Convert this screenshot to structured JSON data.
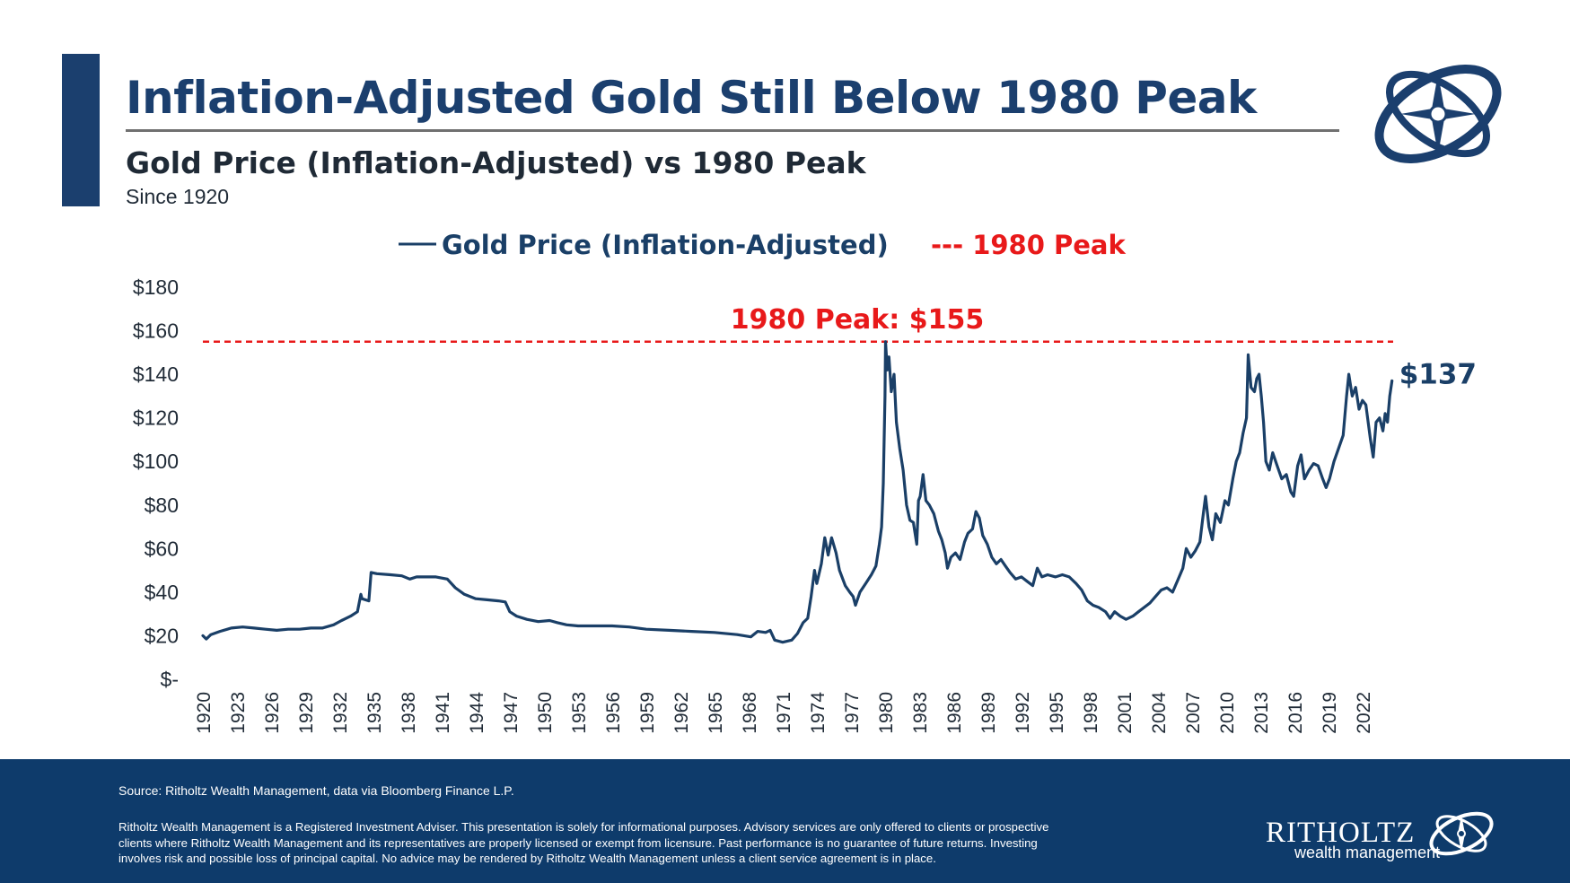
{
  "header": {
    "title": "Inflation-Adjusted Gold Still Below 1980 Peak",
    "subtitle": "Gold Price (Inflation-Adjusted) vs 1980 Peak",
    "since": "Since 1920"
  },
  "footer": {
    "source": "Source: Ritholtz Wealth Management, data via Bloomberg Finance L.P.",
    "disclaimer": "Ritholtz Wealth Management is a Registered Investment Adviser. This presentation is solely for informational purposes. Advisory services are only offered to clients or prospective clients where Ritholtz Wealth Management and its representatives are properly licensed or exempt from licensure. Past performance is no guarantee of future returns. Investing involves risk and possible loss of principal capital. No advice may be rendered by Ritholtz Wealth Management unless a client service agreement is in place.",
    "brand_name": "RITHOLTZ",
    "brand_sub": "wealth management"
  },
  "colors": {
    "navy": "#1b3f6e",
    "line": "#1a3f67",
    "peak_red": "#e8191a",
    "footer_bg": "#0e3b6b"
  },
  "chart_data": {
    "type": "line",
    "title": "Gold Price (Inflation-Adjusted) vs 1980 Peak",
    "ylim": [
      0,
      180
    ],
    "y_ticks": [
      0,
      20,
      40,
      60,
      80,
      100,
      120,
      140,
      160,
      180
    ],
    "y_tick_labels": [
      "$-",
      "$20",
      "$40",
      "$60",
      "$80",
      "$100",
      "$120",
      "$140",
      "$160",
      "$180"
    ],
    "x_tick_labels": [
      "1920",
      "1923",
      "1926",
      "1929",
      "1932",
      "1935",
      "1938",
      "1941",
      "1944",
      "1947",
      "1950",
      "1953",
      "1956",
      "1959",
      "1962",
      "1965",
      "1968",
      "1971",
      "1974",
      "1977",
      "1980",
      "1983",
      "1986",
      "1989",
      "1992",
      "1995",
      "1998",
      "2001",
      "2004",
      "2007",
      "2010",
      "2013",
      "2016",
      "2019",
      "2022"
    ],
    "xlim": [
      1920,
      2024.7
    ],
    "legend": {
      "position": "top",
      "line_label": "Gold Price (Inflation-Adjusted)",
      "peak_label": "--- 1980 Peak"
    },
    "reference_line": {
      "name": "1980 Peak",
      "value": 155,
      "label": "1980 Peak: $155",
      "style": "dashed"
    },
    "end_label": "$137",
    "series": [
      {
        "name": "Gold Price (Inflation-Adjusted)",
        "points": [
          [
            1920.0,
            20
          ],
          [
            1920.3,
            18.5
          ],
          [
            1920.7,
            20.5
          ],
          [
            1921.5,
            22
          ],
          [
            1922.5,
            23.5
          ],
          [
            1923.5,
            24
          ],
          [
            1924.5,
            23.5
          ],
          [
            1925.5,
            23
          ],
          [
            1926.5,
            22.5
          ],
          [
            1927.5,
            23
          ],
          [
            1928.5,
            23
          ],
          [
            1929.5,
            23.5
          ],
          [
            1930.5,
            23.5
          ],
          [
            1931.5,
            25
          ],
          [
            1932.2,
            27
          ],
          [
            1933.0,
            29
          ],
          [
            1933.6,
            31
          ],
          [
            1933.9,
            39
          ],
          [
            1934.0,
            37
          ],
          [
            1934.6,
            36
          ],
          [
            1934.8,
            49
          ],
          [
            1935.3,
            48.5
          ],
          [
            1936.5,
            48
          ],
          [
            1937.5,
            47.5
          ],
          [
            1938.2,
            46
          ],
          [
            1938.8,
            47
          ],
          [
            1939.5,
            47
          ],
          [
            1940.5,
            47
          ],
          [
            1941.5,
            46
          ],
          [
            1942.2,
            42
          ],
          [
            1943.0,
            39
          ],
          [
            1944.0,
            37
          ],
          [
            1945.0,
            36.5
          ],
          [
            1946.0,
            36
          ],
          [
            1946.6,
            35.5
          ],
          [
            1947.0,
            31
          ],
          [
            1947.6,
            29
          ],
          [
            1948.5,
            27.5
          ],
          [
            1949.5,
            26.5
          ],
          [
            1950.5,
            27
          ],
          [
            1951.2,
            26
          ],
          [
            1952.0,
            25
          ],
          [
            1953.0,
            24.5
          ],
          [
            1954.5,
            24.5
          ],
          [
            1956.0,
            24.5
          ],
          [
            1957.5,
            24
          ],
          [
            1959.0,
            23
          ],
          [
            1961.0,
            22.5
          ],
          [
            1963.0,
            22
          ],
          [
            1965.0,
            21.5
          ],
          [
            1967.0,
            20.5
          ],
          [
            1968.2,
            19.5
          ],
          [
            1968.8,
            22
          ],
          [
            1969.5,
            21.5
          ],
          [
            1969.9,
            22.5
          ],
          [
            1970.3,
            18
          ],
          [
            1971.0,
            17
          ],
          [
            1971.8,
            18
          ],
          [
            1972.3,
            21
          ],
          [
            1972.8,
            26
          ],
          [
            1973.2,
            28
          ],
          [
            1973.5,
            38
          ],
          [
            1973.8,
            50
          ],
          [
            1974.0,
            44
          ],
          [
            1974.4,
            53
          ],
          [
            1974.7,
            65
          ],
          [
            1975.0,
            57
          ],
          [
            1975.3,
            65
          ],
          [
            1975.7,
            58
          ],
          [
            1976.0,
            50
          ],
          [
            1976.5,
            43
          ],
          [
            1976.9,
            40
          ],
          [
            1977.2,
            38
          ],
          [
            1977.4,
            34
          ],
          [
            1977.8,
            40
          ],
          [
            1978.3,
            44
          ],
          [
            1978.8,
            48
          ],
          [
            1979.2,
            52
          ],
          [
            1979.5,
            62
          ],
          [
            1979.7,
            70
          ],
          [
            1979.85,
            90
          ],
          [
            1980.0,
            130
          ],
          [
            1980.05,
            155
          ],
          [
            1980.2,
            142
          ],
          [
            1980.35,
            148
          ],
          [
            1980.55,
            132
          ],
          [
            1980.8,
            140
          ],
          [
            1981.0,
            118
          ],
          [
            1981.3,
            106
          ],
          [
            1981.6,
            96
          ],
          [
            1981.9,
            80
          ],
          [
            1982.2,
            73
          ],
          [
            1982.5,
            72
          ],
          [
            1982.8,
            62
          ],
          [
            1982.95,
            82
          ],
          [
            1983.1,
            84
          ],
          [
            1983.35,
            94
          ],
          [
            1983.6,
            82
          ],
          [
            1983.9,
            80
          ],
          [
            1984.3,
            76
          ],
          [
            1984.7,
            68
          ],
          [
            1985.0,
            64
          ],
          [
            1985.3,
            58
          ],
          [
            1985.5,
            51
          ],
          [
            1985.8,
            56
          ],
          [
            1986.2,
            58
          ],
          [
            1986.6,
            55
          ],
          [
            1987.0,
            63
          ],
          [
            1987.3,
            67
          ],
          [
            1987.7,
            69
          ],
          [
            1988.0,
            77
          ],
          [
            1988.3,
            74
          ],
          [
            1988.6,
            66
          ],
          [
            1989.0,
            62
          ],
          [
            1989.4,
            56
          ],
          [
            1989.8,
            53
          ],
          [
            1990.2,
            55
          ],
          [
            1990.6,
            52
          ],
          [
            1991.0,
            49
          ],
          [
            1991.5,
            46
          ],
          [
            1992.0,
            47
          ],
          [
            1992.5,
            45
          ],
          [
            1993.0,
            43
          ],
          [
            1993.4,
            51
          ],
          [
            1993.8,
            47
          ],
          [
            1994.3,
            48
          ],
          [
            1995.0,
            47
          ],
          [
            1995.6,
            48
          ],
          [
            1996.2,
            47
          ],
          [
            1996.8,
            44
          ],
          [
            1997.3,
            41
          ],
          [
            1997.8,
            36
          ],
          [
            1998.3,
            34
          ],
          [
            1998.8,
            33
          ],
          [
            1999.4,
            31
          ],
          [
            1999.8,
            28
          ],
          [
            2000.2,
            31
          ],
          [
            2000.7,
            29
          ],
          [
            2001.2,
            27.5
          ],
          [
            2001.8,
            29
          ],
          [
            2002.3,
            31
          ],
          [
            2002.8,
            33
          ],
          [
            2003.3,
            35
          ],
          [
            2003.8,
            38
          ],
          [
            2004.3,
            41
          ],
          [
            2004.8,
            42
          ],
          [
            2005.3,
            40
          ],
          [
            2005.8,
            46
          ],
          [
            2006.2,
            51
          ],
          [
            2006.5,
            60
          ],
          [
            2006.9,
            56
          ],
          [
            2007.3,
            59
          ],
          [
            2007.7,
            63
          ],
          [
            2008.0,
            76
          ],
          [
            2008.2,
            84
          ],
          [
            2008.5,
            70
          ],
          [
            2008.8,
            64
          ],
          [
            2009.1,
            76
          ],
          [
            2009.5,
            72
          ],
          [
            2009.9,
            82
          ],
          [
            2010.2,
            80
          ],
          [
            2010.6,
            92
          ],
          [
            2010.9,
            100
          ],
          [
            2011.2,
            104
          ],
          [
            2011.5,
            113
          ],
          [
            2011.8,
            120
          ],
          [
            2011.95,
            149
          ],
          [
            2012.2,
            134
          ],
          [
            2012.5,
            132
          ],
          [
            2012.7,
            138
          ],
          [
            2012.9,
            140
          ],
          [
            2013.1,
            130
          ],
          [
            2013.3,
            118
          ],
          [
            2013.5,
            100
          ],
          [
            2013.8,
            96
          ],
          [
            2014.1,
            104
          ],
          [
            2014.5,
            98
          ],
          [
            2014.9,
            92
          ],
          [
            2015.3,
            94
          ],
          [
            2015.7,
            86
          ],
          [
            2015.95,
            84
          ],
          [
            2016.3,
            98
          ],
          [
            2016.6,
            103
          ],
          [
            2016.9,
            92
          ],
          [
            2017.3,
            96
          ],
          [
            2017.7,
            99
          ],
          [
            2018.1,
            98
          ],
          [
            2018.5,
            92
          ],
          [
            2018.8,
            88
          ],
          [
            2019.1,
            92
          ],
          [
            2019.5,
            100
          ],
          [
            2019.9,
            106
          ],
          [
            2020.3,
            112
          ],
          [
            2020.6,
            130
          ],
          [
            2020.8,
            140
          ],
          [
            2021.1,
            130
          ],
          [
            2021.4,
            134
          ],
          [
            2021.7,
            124
          ],
          [
            2022.0,
            128
          ],
          [
            2022.3,
            126
          ],
          [
            2022.7,
            110
          ],
          [
            2022.95,
            102
          ],
          [
            2023.2,
            118
          ],
          [
            2023.5,
            120
          ],
          [
            2023.8,
            114
          ],
          [
            2024.0,
            122
          ],
          [
            2024.2,
            118
          ],
          [
            2024.4,
            130
          ],
          [
            2024.6,
            137
          ]
        ]
      }
    ]
  }
}
